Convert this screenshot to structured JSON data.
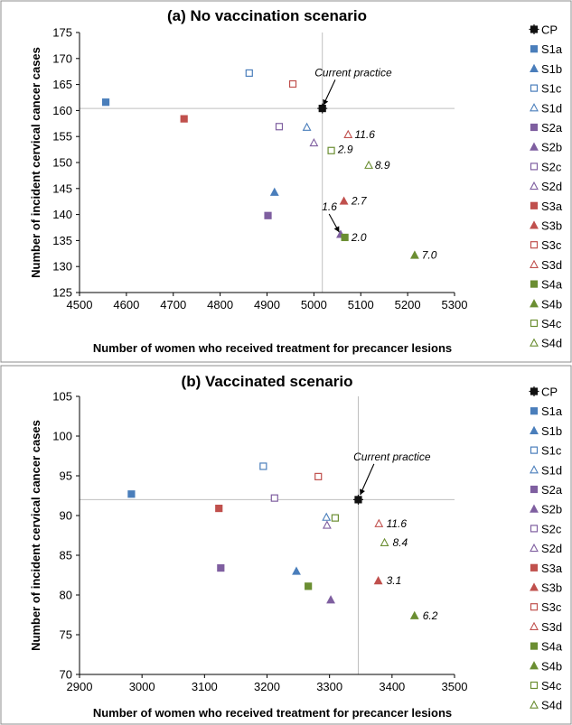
{
  "colors": {
    "black": "#111111",
    "blue": "#4a7ebb",
    "purple": "#7f5fa0",
    "red": "#c0504d",
    "green": "#6b8e32",
    "refline": "#bfbfbf",
    "frame": "#8c8c8c"
  },
  "chart_data": [
    {
      "type": "scatter",
      "title": "(a) No vaccination scenario",
      "xlabel": "Number of women who received treatment for precancer lesions",
      "ylabel": "Number of incident cervical cancer cases",
      "xlim": [
        4500,
        5300
      ],
      "ylim": [
        125,
        175
      ],
      "xticks": [
        4500,
        4600,
        4700,
        4800,
        4900,
        5000,
        5100,
        5200,
        5300
      ],
      "yticks": [
        125,
        130,
        135,
        140,
        145,
        150,
        155,
        160,
        165,
        170,
        175
      ],
      "grid": false,
      "legend_position": "right",
      "reference_lines": {
        "x": 5018,
        "y": 160.4
      },
      "series": [
        {
          "name": "CP",
          "marker": "square-cross",
          "color": "black",
          "filled": true,
          "x": 5018,
          "y": 160.4
        },
        {
          "name": "S1a",
          "marker": "square",
          "color": "blue",
          "filled": true,
          "x": 4556,
          "y": 161.6
        },
        {
          "name": "S1b",
          "marker": "triangle",
          "color": "blue",
          "filled": true,
          "x": 4916,
          "y": 144.3
        },
        {
          "name": "S1c",
          "marker": "square",
          "color": "blue",
          "filled": false,
          "x": 4862,
          "y": 167.2
        },
        {
          "name": "S1d",
          "marker": "triangle",
          "color": "blue",
          "filled": false,
          "x": 4985,
          "y": 156.8
        },
        {
          "name": "S2a",
          "marker": "square",
          "color": "purple",
          "filled": true,
          "x": 4902,
          "y": 139.8
        },
        {
          "name": "S2b",
          "marker": "triangle",
          "color": "purple",
          "filled": true,
          "x": 5057,
          "y": 136.2
        },
        {
          "name": "S2c",
          "marker": "square",
          "color": "purple",
          "filled": false,
          "x": 4926,
          "y": 156.9
        },
        {
          "name": "S2d",
          "marker": "triangle",
          "color": "purple",
          "filled": false,
          "x": 5000,
          "y": 153.8
        },
        {
          "name": "S3a",
          "marker": "square",
          "color": "red",
          "filled": true,
          "x": 4723,
          "y": 158.4
        },
        {
          "name": "S3b",
          "marker": "triangle",
          "color": "red",
          "filled": true,
          "x": 5064,
          "y": 142.6
        },
        {
          "name": "S3c",
          "marker": "square",
          "color": "red",
          "filled": false,
          "x": 4955,
          "y": 165.1
        },
        {
          "name": "S3d",
          "marker": "triangle",
          "color": "red",
          "filled": false,
          "x": 5073,
          "y": 155.4
        },
        {
          "name": "S4a",
          "marker": "square",
          "color": "green",
          "filled": true,
          "x": 5066,
          "y": 135.6
        },
        {
          "name": "S4b",
          "marker": "triangle",
          "color": "green",
          "filled": true,
          "x": 5215,
          "y": 132.2
        },
        {
          "name": "S4c",
          "marker": "square",
          "color": "green",
          "filled": false,
          "x": 5037,
          "y": 152.3
        },
        {
          "name": "S4d",
          "marker": "triangle",
          "color": "green",
          "filled": false,
          "x": 5117,
          "y": 149.5
        }
      ],
      "annotations": [
        {
          "text": "Current practice",
          "anchor_x": 5084,
          "anchor_y": 167.3,
          "arrow_to": [
            5020,
            161.0
          ],
          "kind": "arrow"
        },
        {
          "text": "11.6",
          "anchor_x": 5087,
          "anchor_y": 155.4
        },
        {
          "text": "2.9",
          "anchor_x": 5051,
          "anchor_y": 152.5
        },
        {
          "text": "8.9",
          "anchor_x": 5130,
          "anchor_y": 149.5
        },
        {
          "text": "2.7",
          "anchor_x": 5080,
          "anchor_y": 142.6
        },
        {
          "text": "1.6",
          "anchor_x": 5017,
          "anchor_y": 141.5,
          "arrow_to": [
            5054,
            136.6
          ],
          "kind": "arrow"
        },
        {
          "text": "2.0",
          "anchor_x": 5080,
          "anchor_y": 135.6
        },
        {
          "text": "7.0",
          "anchor_x": 5230,
          "anchor_y": 132.2
        }
      ]
    },
    {
      "type": "scatter",
      "title": "(b) Vaccinated scenario",
      "xlabel": "Number of women who received treatment for precancer lesions",
      "ylabel": "Number of incident cervical cancer cases",
      "xlim": [
        2900,
        3500
      ],
      "ylim": [
        70,
        105
      ],
      "xticks": [
        2900,
        3000,
        3100,
        3200,
        3300,
        3400,
        3500
      ],
      "yticks": [
        70,
        75,
        80,
        85,
        90,
        95,
        100,
        105
      ],
      "grid": false,
      "legend_position": "right",
      "reference_lines": {
        "x": 3346,
        "y": 92.0
      },
      "series": [
        {
          "name": "CP",
          "marker": "square-cross",
          "color": "black",
          "filled": true,
          "x": 3346,
          "y": 92.0
        },
        {
          "name": "S1a",
          "marker": "square",
          "color": "blue",
          "filled": true,
          "x": 2983,
          "y": 92.7
        },
        {
          "name": "S1b",
          "marker": "triangle",
          "color": "blue",
          "filled": true,
          "x": 3247,
          "y": 83.0
        },
        {
          "name": "S1c",
          "marker": "square",
          "color": "blue",
          "filled": false,
          "x": 3194,
          "y": 96.2
        },
        {
          "name": "S1d",
          "marker": "triangle",
          "color": "blue",
          "filled": false,
          "x": 3295,
          "y": 89.8
        },
        {
          "name": "S2a",
          "marker": "square",
          "color": "purple",
          "filled": true,
          "x": 3126,
          "y": 83.4
        },
        {
          "name": "S2b",
          "marker": "triangle",
          "color": "purple",
          "filled": true,
          "x": 3302,
          "y": 79.4
        },
        {
          "name": "S2c",
          "marker": "square",
          "color": "purple",
          "filled": false,
          "x": 3212,
          "y": 92.2
        },
        {
          "name": "S2d",
          "marker": "triangle",
          "color": "purple",
          "filled": false,
          "x": 3296,
          "y": 88.8
        },
        {
          "name": "S3a",
          "marker": "square",
          "color": "red",
          "filled": true,
          "x": 3123,
          "y": 90.9
        },
        {
          "name": "S3b",
          "marker": "triangle",
          "color": "red",
          "filled": true,
          "x": 3378,
          "y": 81.8
        },
        {
          "name": "S3c",
          "marker": "square",
          "color": "red",
          "filled": false,
          "x": 3282,
          "y": 94.9
        },
        {
          "name": "S3d",
          "marker": "triangle",
          "color": "red",
          "filled": false,
          "x": 3379,
          "y": 89.0
        },
        {
          "name": "S4a",
          "marker": "square",
          "color": "green",
          "filled": true,
          "x": 3266,
          "y": 81.1
        },
        {
          "name": "S4b",
          "marker": "triangle",
          "color": "green",
          "filled": true,
          "x": 3436,
          "y": 77.4
        },
        {
          "name": "S4c",
          "marker": "square",
          "color": "green",
          "filled": false,
          "x": 3309,
          "y": 89.7
        },
        {
          "name": "S4d",
          "marker": "triangle",
          "color": "green",
          "filled": false,
          "x": 3388,
          "y": 86.6
        }
      ],
      "annotations": [
        {
          "text": "Current practice",
          "anchor_x": 3400,
          "anchor_y": 97.4,
          "arrow_to": [
            3349,
            92.6
          ],
          "kind": "arrow"
        },
        {
          "text": "11.6",
          "anchor_x": 3391,
          "anchor_y": 89.0
        },
        {
          "text": "8.4",
          "anchor_x": 3401,
          "anchor_y": 86.6
        },
        {
          "text": "3.1",
          "anchor_x": 3391,
          "anchor_y": 81.8
        },
        {
          "text": "6.2",
          "anchor_x": 3449,
          "anchor_y": 77.4
        }
      ]
    }
  ]
}
